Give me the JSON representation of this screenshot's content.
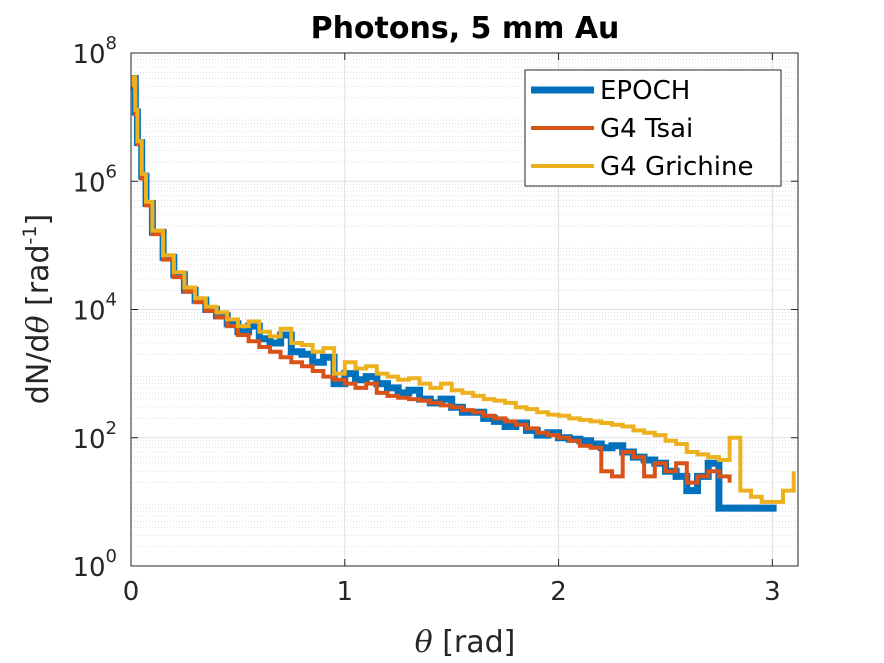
{
  "chart_data": {
    "type": "line",
    "title": "Photons, 5 mm Au",
    "xlabel_symbol": "θ",
    "xlabel_unit": " [rad]",
    "ylabel_prefix": "dN/d",
    "ylabel_symbol": "θ",
    "ylabel_unit": " [rad",
    "ylabel_exp": "-1",
    "ylabel_close": "]",
    "xlim": [
      0,
      3.12
    ],
    "ylim": [
      1,
      100000000
    ],
    "yscale": "log",
    "grid": true,
    "legend_position": "top-right",
    "xticks": [
      {
        "value": 0,
        "label": "0"
      },
      {
        "value": 1,
        "label": "1"
      },
      {
        "value": 2,
        "label": "2"
      },
      {
        "value": 3,
        "label": "3"
      }
    ],
    "yticks": [
      {
        "value": 1,
        "base": "10",
        "exp": "0"
      },
      {
        "value": 100,
        "base": "10",
        "exp": "2"
      },
      {
        "value": 10000,
        "base": "10",
        "exp": "4"
      },
      {
        "value": 1000000,
        "base": "10",
        "exp": "6"
      },
      {
        "value": 100000000,
        "base": "10",
        "exp": "8"
      }
    ],
    "series": [
      {
        "name": "EPOCH",
        "color": "#0072BD",
        "x": [
          0,
          0.01,
          0.02,
          0.03,
          0.05,
          0.07,
          0.1,
          0.15,
          0.2,
          0.25,
          0.3,
          0.35,
          0.4,
          0.45,
          0.5,
          0.55,
          0.6,
          0.65,
          0.7,
          0.75,
          0.8,
          0.85,
          0.9,
          0.95,
          1.0,
          1.05,
          1.1,
          1.15,
          1.2,
          1.25,
          1.3,
          1.35,
          1.4,
          1.45,
          1.5,
          1.55,
          1.6,
          1.65,
          1.7,
          1.75,
          1.8,
          1.85,
          1.9,
          1.95,
          2.0,
          2.05,
          2.1,
          2.15,
          2.2,
          2.25,
          2.3,
          2.35,
          2.4,
          2.45,
          2.5,
          2.55,
          2.6,
          2.65,
          2.7,
          2.75,
          2.8,
          2.85,
          2.9,
          2.95,
          3.02
        ],
        "y": [
          30000000,
          40000000,
          12000000,
          4000000,
          1200000,
          450000,
          160000,
          65000,
          35000,
          20000,
          14000,
          10000,
          8000,
          6000,
          4500,
          5500,
          3500,
          3000,
          4000,
          2200,
          2000,
          1500,
          1800,
          700,
          1000,
          800,
          900,
          700,
          600,
          500,
          550,
          400,
          350,
          400,
          300,
          250,
          250,
          200,
          180,
          150,
          170,
          130,
          110,
          120,
          100,
          95,
          90,
          80,
          70,
          75,
          60,
          50,
          45,
          40,
          30,
          25,
          15,
          25,
          40,
          8,
          8,
          8,
          8,
          8,
          8
        ]
      },
      {
        "name": "G4 Tsai",
        "color": "#D95319",
        "x": [
          0,
          0.01,
          0.02,
          0.03,
          0.05,
          0.07,
          0.1,
          0.15,
          0.2,
          0.25,
          0.3,
          0.35,
          0.4,
          0.45,
          0.5,
          0.55,
          0.6,
          0.65,
          0.7,
          0.75,
          0.8,
          0.85,
          0.9,
          0.95,
          1.0,
          1.05,
          1.1,
          1.15,
          1.2,
          1.25,
          1.3,
          1.35,
          1.4,
          1.45,
          1.5,
          1.55,
          1.6,
          1.65,
          1.7,
          1.75,
          1.8,
          1.85,
          1.9,
          1.95,
          2.0,
          2.05,
          2.1,
          2.15,
          2.2,
          2.25,
          2.3,
          2.35,
          2.4,
          2.45,
          2.5,
          2.55,
          2.6,
          2.65,
          2.7,
          2.75,
          2.8
        ],
        "y": [
          30000000,
          35000000,
          11000000,
          3800000,
          1100000,
          420000,
          150000,
          60000,
          32000,
          19000,
          13000,
          9500,
          7500,
          5500,
          4000,
          3200,
          2600,
          2200,
          1800,
          1500,
          1300,
          1100,
          900,
          800,
          700,
          600,
          700,
          500,
          450,
          420,
          400,
          380,
          350,
          320,
          300,
          270,
          250,
          220,
          200,
          180,
          160,
          140,
          120,
          110,
          100,
          90,
          75,
          70,
          30,
          25,
          60,
          50,
          25,
          40,
          30,
          40,
          20,
          25,
          30,
          25,
          20
        ]
      },
      {
        "name": "G4 Grichine",
        "color": "#EDB120",
        "x": [
          0,
          0.01,
          0.02,
          0.03,
          0.05,
          0.07,
          0.1,
          0.15,
          0.2,
          0.25,
          0.3,
          0.35,
          0.4,
          0.45,
          0.5,
          0.55,
          0.6,
          0.65,
          0.7,
          0.75,
          0.8,
          0.85,
          0.9,
          0.95,
          1.0,
          1.05,
          1.1,
          1.15,
          1.2,
          1.25,
          1.3,
          1.35,
          1.4,
          1.45,
          1.5,
          1.55,
          1.6,
          1.65,
          1.7,
          1.75,
          1.8,
          1.85,
          1.9,
          1.95,
          2.0,
          2.05,
          2.1,
          2.15,
          2.2,
          2.25,
          2.3,
          2.35,
          2.4,
          2.45,
          2.5,
          2.55,
          2.6,
          2.65,
          2.7,
          2.75,
          2.8,
          2.85,
          2.9,
          2.95,
          3.0,
          3.05,
          3.1
        ],
        "y": [
          32000000,
          42000000,
          13000000,
          4200000,
          1300000,
          480000,
          170000,
          70000,
          38000,
          22000,
          15000,
          11000,
          9000,
          7000,
          5500,
          6500,
          4500,
          3800,
          5000,
          3000,
          2800,
          2200,
          2500,
          1000,
          1500,
          1200,
          1300,
          1000,
          900,
          800,
          850,
          700,
          600,
          700,
          550,
          500,
          450,
          400,
          380,
          350,
          300,
          280,
          250,
          230,
          220,
          200,
          190,
          180,
          170,
          160,
          150,
          130,
          120,
          110,
          90,
          80,
          60,
          55,
          50,
          45,
          100,
          15,
          12,
          10,
          10,
          15,
          30
        ]
      }
    ]
  }
}
